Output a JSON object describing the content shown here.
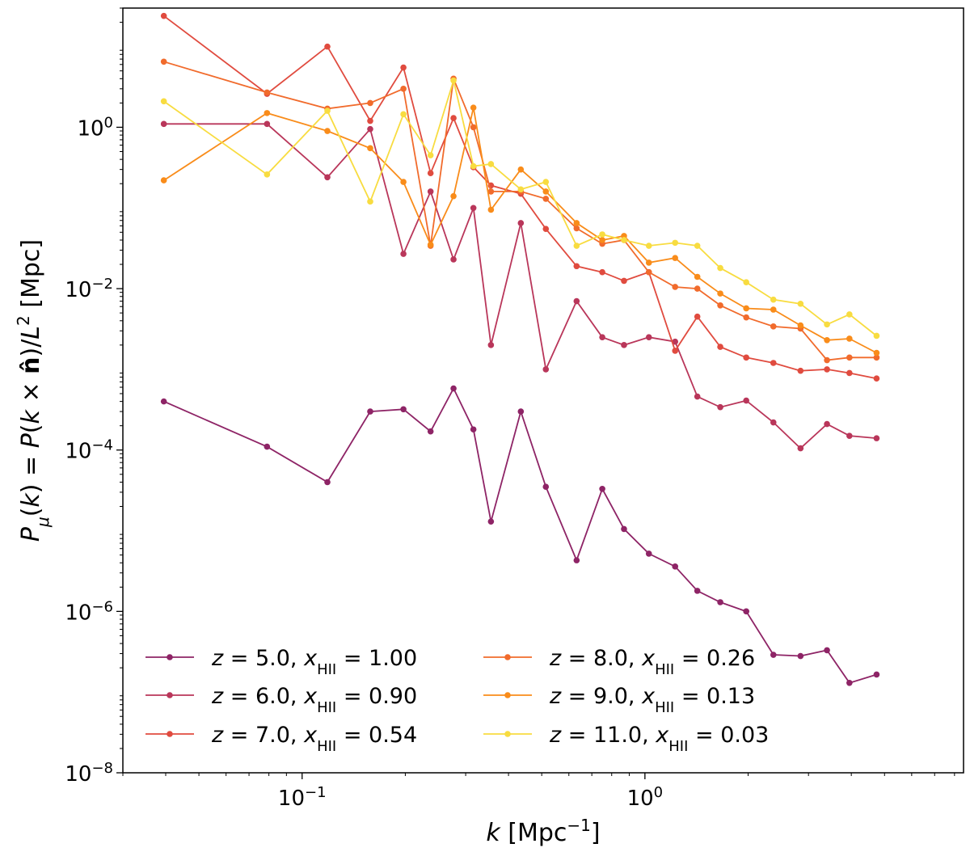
{
  "chart_data": {
    "type": "line",
    "x_scale": "log",
    "y_scale": "log",
    "xlabel": "k [Mpc^-1]",
    "ylabel": "P_mu(k) = P(k × n̂)/L^2 [Mpc]",
    "xlim": [
      0.03,
      8.5
    ],
    "ylim": [
      1e-08,
      30.0
    ],
    "x_ticks": [
      {
        "value": 0.1,
        "base": "10",
        "exp": "−1"
      },
      {
        "value": 1,
        "base": "10",
        "exp": "0"
      }
    ],
    "y_ticks": [
      {
        "value": 1e-08,
        "base": "10",
        "exp": "−8"
      },
      {
        "value": 1e-06,
        "base": "10",
        "exp": "−6"
      },
      {
        "value": 0.0001,
        "base": "10",
        "exp": "−4"
      },
      {
        "value": 0.01,
        "base": "10",
        "exp": "−2"
      },
      {
        "value": 1,
        "base": "10",
        "exp": "0"
      }
    ],
    "grid": false,
    "legend_position": "bottom-left",
    "x": [
      0.0395,
      0.079,
      0.1185,
      0.158,
      0.1975,
      0.237,
      0.2765,
      0.316,
      0.3555,
      0.4345,
      0.514,
      0.632,
      0.751,
      0.869,
      1.027,
      1.225,
      1.422,
      1.659,
      1.975,
      2.37,
      2.844,
      3.397,
      3.95,
      4.74
    ],
    "series": [
      {
        "name": "z=5.0, x_HII=1.00",
        "z": "5.0",
        "xhii": "1.00",
        "color": "#8e2466",
        "values": [
          0.0004,
          0.00011,
          4e-05,
          0.0003,
          0.00032,
          0.00017,
          0.00058,
          0.00018,
          1.3e-05,
          0.0003,
          3.5e-05,
          4.3e-06,
          3.3e-05,
          1.05e-05,
          5.2e-06,
          3.6e-06,
          1.8e-06,
          1.3e-06,
          1e-06,
          2.9e-07,
          2.8e-07,
          3.3e-07,
          1.3e-07,
          1.65e-07
        ]
      },
      {
        "name": "z=6.0, x_HII=0.90",
        "z": "6.0",
        "xhii": "0.90",
        "color": "#b9365a",
        "values": [
          1.1,
          1.1,
          0.24,
          0.95,
          0.027,
          0.16,
          0.023,
          0.1,
          0.002,
          0.065,
          0.001,
          0.007,
          0.0025,
          0.002,
          0.0025,
          0.0022,
          0.00046,
          0.00034,
          0.00041,
          0.00022,
          0.000105,
          0.00021,
          0.00015,
          0.00014
        ]
      },
      {
        "name": "z=7.0, x_HII=0.54",
        "z": "7.0",
        "xhii": "0.54",
        "color": "#e04b3f",
        "values": [
          24,
          2.6,
          10,
          1.2,
          5.5,
          0.27,
          1.3,
          0.32,
          0.19,
          0.15,
          0.055,
          0.019,
          0.016,
          0.0125,
          0.016,
          0.0017,
          0.0045,
          0.0019,
          0.0014,
          0.0012,
          0.00096,
          0.001,
          0.0009,
          0.00077
        ]
      },
      {
        "name": "z=8.0, x_HII=0.26",
        "z": "8.0",
        "xhii": "0.26",
        "color": "#f16b2c",
        "values": [
          6.5,
          2.7,
          1.7,
          2,
          3,
          0.034,
          4,
          1,
          0.16,
          0.16,
          0.13,
          0.056,
          0.036,
          0.04,
          0.016,
          0.0105,
          0.01,
          0.0062,
          0.0044,
          0.0034,
          0.0032,
          0.0013,
          0.0014,
          0.0014
        ]
      },
      {
        "name": "z=9.0, x_HII=0.13",
        "z": "9.0",
        "xhii": "0.13",
        "color": "#f98c1a",
        "values": [
          0.22,
          1.5,
          0.9,
          0.55,
          0.21,
          0.035,
          0.14,
          1.75,
          0.095,
          0.3,
          0.16,
          0.065,
          0.04,
          0.045,
          0.021,
          0.024,
          0.014,
          0.0087,
          0.0057,
          0.0055,
          0.0035,
          0.0023,
          0.0024,
          0.0016
        ]
      },
      {
        "name": "z=11.0, x_HII=0.03",
        "z": "11.0",
        "xhii": "0.03",
        "color": "#f8dc40",
        "values": [
          2.1,
          0.26,
          1.6,
          0.12,
          1.45,
          0.45,
          3.8,
          0.33,
          0.35,
          0.17,
          0.21,
          0.034,
          0.047,
          0.04,
          0.034,
          0.037,
          0.034,
          0.018,
          0.012,
          0.0073,
          0.0065,
          0.0036,
          0.0048,
          0.0026
        ]
      }
    ]
  }
}
